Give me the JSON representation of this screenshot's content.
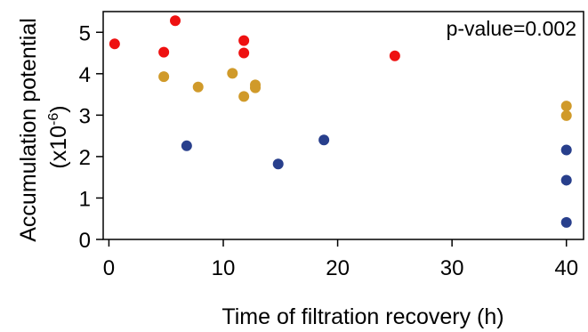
{
  "chart_data": {
    "type": "scatter",
    "xlabel": "Time of filtration recovery (h)",
    "ylabel": "Accumulation potential",
    "ylabel_unit": "(x10",
    "ylabel_exp": "-6",
    "ylabel_close": ")",
    "annotation": "p-value=0.002",
    "xlim": [
      -0.5,
      41.5
    ],
    "ylim": [
      0,
      5.5
    ],
    "xticks": [
      0,
      10,
      20,
      30,
      40
    ],
    "yticks": [
      0,
      1,
      2,
      3,
      4,
      5
    ],
    "xtick_labels": [
      "0",
      "10",
      "20",
      "30",
      "40"
    ],
    "ytick_labels": [
      "0",
      "1",
      "2",
      "3",
      "4",
      "5"
    ],
    "grid": false,
    "series": [
      {
        "color": "#ee1111",
        "x": [
          0.5,
          4.8,
          5.8,
          11.8,
          11.8,
          25
        ],
        "y": [
          4.72,
          4.52,
          5.28,
          4.8,
          4.5,
          4.43
        ]
      },
      {
        "color": "#d09a2a",
        "x": [
          4.8,
          7.8,
          10.8,
          11.8,
          12.8,
          12.8,
          40,
          40
        ],
        "y": [
          3.93,
          3.68,
          4.01,
          3.45,
          3.73,
          3.66,
          3.22,
          2.99
        ]
      },
      {
        "color": "#283f8c",
        "x": [
          6.8,
          14.8,
          18.8,
          40,
          40,
          40
        ],
        "y": [
          2.26,
          1.82,
          2.4,
          2.16,
          1.43,
          0.41
        ]
      }
    ]
  }
}
